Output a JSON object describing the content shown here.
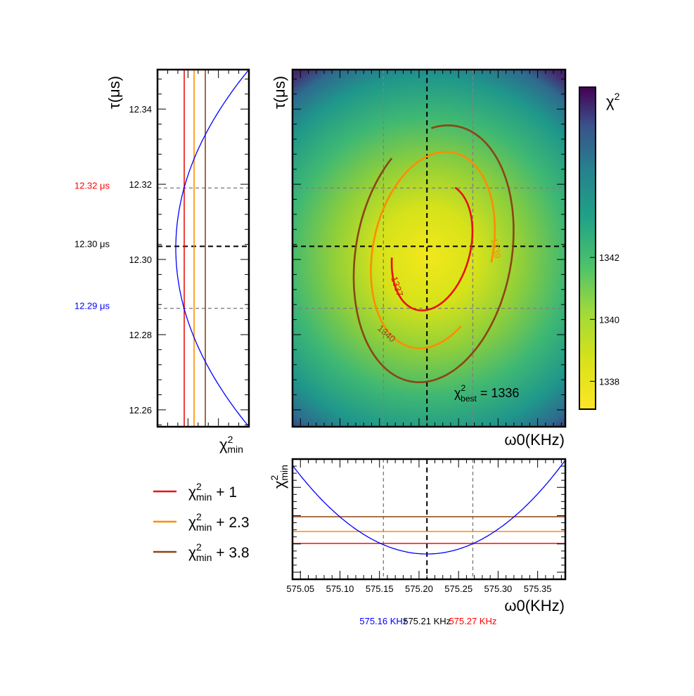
{
  "chart_data": [
    {
      "type": "heatmap",
      "panel": "main",
      "title": "",
      "xlabel": "ω0(KHz)",
      "ylabel": "τ(μs)",
      "xlim": [
        575.04,
        575.385
      ],
      "ylim": [
        12.2555,
        12.3505
      ],
      "best_fit": {
        "omega0": 575.21,
        "tau": 12.3035
      },
      "interval_lines": {
        "omega0": [
          575.155,
          575.268
        ],
        "tau": [
          12.287,
          12.319
        ]
      },
      "contours": [
        {
          "level_label": "1337",
          "color": "#e8120e",
          "ellipse": {
            "cx": 575.2165,
            "cy": 12.3033,
            "rx": 0.0485,
            "ry": 0.0172,
            "rot_deg": 14
          }
        },
        {
          "level_label": "1339",
          "color": "#ff8c00",
          "ellipse": {
            "cx": 575.2175,
            "cy": 12.3025,
            "rx": 0.0755,
            "ry": 0.0265,
            "rot_deg": 12
          }
        },
        {
          "level_label": "1340",
          "color": "#8b4513",
          "ellipse": {
            "cx": 575.2185,
            "cy": 12.3015,
            "rx": 0.0985,
            "ry": 0.0345,
            "rot_deg": 10
          }
        }
      ],
      "annotation": {
        "prefix": "χ",
        "sup": "2",
        "sub": "best",
        "text": "= 1336"
      },
      "colorbar": {
        "label_base": "χ",
        "label_sup": "2",
        "ticks": [
          1338,
          1340,
          1342
        ],
        "range": [
          1337.1,
          1347.5
        ]
      }
    },
    {
      "type": "line",
      "panel": "left",
      "xlabel_base": "χ",
      "xlabel_sup": "2",
      "xlabel_sub": "min",
      "ylabel": "τ(μs)",
      "ylim": [
        12.2555,
        12.3505
      ],
      "yticks": [
        12.26,
        12.28,
        12.3,
        12.32,
        12.34
      ],
      "curve": {
        "type": "parabola",
        "vertex_tau": 12.303,
        "color": "#0000ff"
      },
      "hlines": [
        12.287,
        12.3035,
        12.319
      ],
      "vlines": [
        {
          "color": "#e8120e"
        },
        {
          "color": "#ff8c00"
        },
        {
          "color": "#8b4513"
        }
      ],
      "side_labels": [
        {
          "text": "12.32 μs",
          "value": 12.319,
          "color": "#ff0000"
        },
        {
          "text": "12.30 μs",
          "value": 12.3035,
          "color": "#000000"
        },
        {
          "text": "12.29 μs",
          "value": 12.287,
          "color": "#0000ff"
        }
      ]
    },
    {
      "type": "line",
      "panel": "bottom",
      "xlabel": "ω0(KHz)",
      "ylabel_base": "χ",
      "ylabel_sup": "2",
      "ylabel_sub": "min",
      "xlim": [
        575.04,
        575.385
      ],
      "xticks": [
        575.05,
        575.1,
        575.15,
        575.2,
        575.25,
        575.3,
        575.35
      ],
      "curve": {
        "type": "parabola",
        "vertex_omega0": 575.21,
        "color": "#0000ff"
      },
      "vlines": [
        575.155,
        575.21,
        575.268
      ],
      "hlines": [
        {
          "color": "#e8120e",
          "offset": 1
        },
        {
          "color": "#ff8c00",
          "offset": 2.3
        },
        {
          "color": "#8b4513",
          "offset": 3.8
        }
      ],
      "side_labels": [
        {
          "text": "575.16 KHz",
          "value": 575.155,
          "color": "#0000ff"
        },
        {
          "text": "575.21 KHz",
          "value": 575.21,
          "color": "#000000"
        },
        {
          "text": "575.27 KHz",
          "value": 575.268,
          "color": "#ff0000"
        }
      ]
    }
  ],
  "legend": {
    "position": "bottom-left",
    "entries": [
      {
        "base": "χ",
        "sup": "2",
        "sub": "min",
        "suffix": "+ 1",
        "color": "#e8120e"
      },
      {
        "base": "χ",
        "sup": "2",
        "sub": "min",
        "suffix": "+ 2.3",
        "color": "#ff8c00"
      },
      {
        "base": "χ",
        "sup": "2",
        "sub": "min",
        "suffix": "+ 3.8",
        "color": "#8b4513"
      }
    ]
  }
}
